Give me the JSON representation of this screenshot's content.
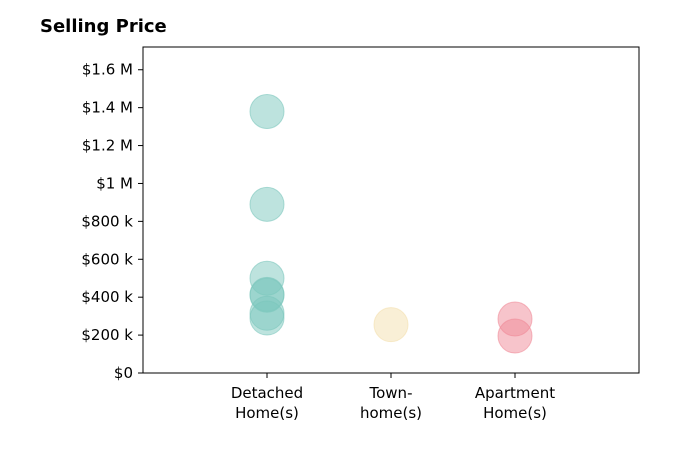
{
  "chart_data": {
    "type": "scatter",
    "title": "Selling Price",
    "xlabel": "",
    "ylabel": "",
    "categories": [
      [
        "Detached",
        "Home(s)"
      ],
      [
        "Town-",
        "home(s)"
      ],
      [
        "Apartment",
        "Home(s)"
      ]
    ],
    "ylim": [
      0,
      1720000
    ],
    "yticks": [
      0,
      200000,
      400000,
      600000,
      800000,
      1000000,
      1200000,
      1400000,
      1600000
    ],
    "ytick_labels": [
      "$0",
      "$200 k",
      "$400 k",
      "$600 k",
      "$800 k",
      "$1 M",
      "$1.2 M",
      "$1.4 M",
      "$1.6 M"
    ],
    "grid": false,
    "series": [
      {
        "category": 0,
        "color": "#7cc7bd",
        "values": [
          1380000,
          890000,
          500000,
          415000,
          410000,
          315000,
          290000
        ]
      },
      {
        "category": 1,
        "color": "#f4dfae",
        "values": [
          255000
        ]
      },
      {
        "category": 2,
        "color": "#f08a98",
        "values": [
          285000,
          195000
        ]
      }
    ]
  }
}
